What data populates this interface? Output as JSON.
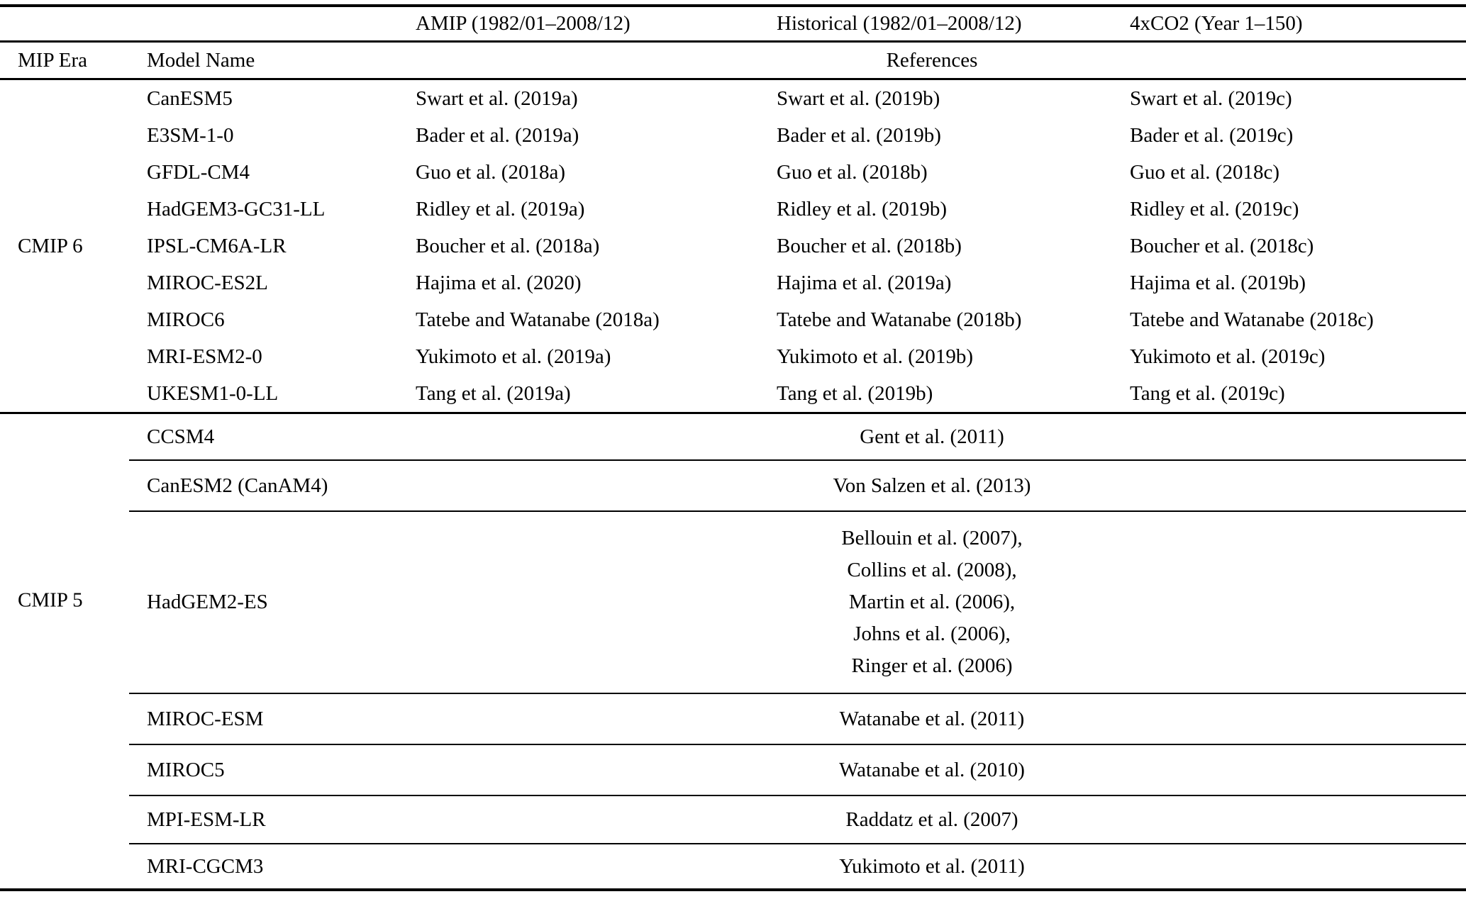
{
  "table": {
    "experiment_headers": {
      "amip": "AMIP (1982/01–2008/12)",
      "historical": "Historical (1982/01–2008/12)",
      "co2_4x": "4xCO2 (Year 1–150)"
    },
    "column_headers": {
      "mip_era": "MIP Era",
      "model_name": "Model Name",
      "references": "References"
    },
    "cmip6": {
      "era_label": "CMIP 6",
      "rows": [
        {
          "model": "CanESM5",
          "amip": "Swart et al. (2019a)",
          "historical": "Swart et al. (2019b)",
          "co2_4x": "Swart et al. (2019c)"
        },
        {
          "model": "E3SM-1-0",
          "amip": "Bader et al. (2019a)",
          "historical": "Bader et al. (2019b)",
          "co2_4x": "Bader et al. (2019c)"
        },
        {
          "model": "GFDL-CM4",
          "amip": "Guo et al. (2018a)",
          "historical": "Guo et al. (2018b)",
          "co2_4x": "Guo et al. (2018c)"
        },
        {
          "model": "HadGEM3-GC31-LL",
          "amip": "Ridley et al. (2019a)",
          "historical": "Ridley et al. (2019b)",
          "co2_4x": "Ridley et al. (2019c)"
        },
        {
          "model": "IPSL-CM6A-LR",
          "amip": "Boucher et al. (2018a)",
          "historical": "Boucher et al. (2018b)",
          "co2_4x": "Boucher et al. (2018c)"
        },
        {
          "model": "MIROC-ES2L",
          "amip": "Hajima et al. (2020)",
          "historical": "Hajima et al. (2019a)",
          "co2_4x": "Hajima et al. (2019b)"
        },
        {
          "model": "MIROC6",
          "amip": "Tatebe and Watanabe (2018a)",
          "historical": "Tatebe and Watanabe (2018b)",
          "co2_4x": "Tatebe and Watanabe (2018c)"
        },
        {
          "model": "MRI-ESM2-0",
          "amip": "Yukimoto et al. (2019a)",
          "historical": "Yukimoto et al. (2019b)",
          "co2_4x": "Yukimoto et al. (2019c)"
        },
        {
          "model": "UKESM1-0-LL",
          "amip": "Tang et al. (2019a)",
          "historical": "Tang et al. (2019b)",
          "co2_4x": "Tang et al. (2019c)"
        }
      ]
    },
    "cmip5": {
      "era_label": "CMIP 5",
      "rows": [
        {
          "model": "CCSM4",
          "reference": "Gent et al. (2011)"
        },
        {
          "model": "CanESM2 (CanAM4)",
          "reference": "Von Salzen et al. (2013)"
        },
        {
          "model": "HadGEM2-ES",
          "reference_lines": [
            "Bellouin et al. (2007),",
            "Collins et al. (2008),",
            "Martin et al. (2006),",
            "Johns et al. (2006),",
            "Ringer et al. (2006)"
          ]
        },
        {
          "model": "MIROC-ESM",
          "reference": "Watanabe et al. (2011)"
        },
        {
          "model": "MIROC5",
          "reference": "Watanabe et al. (2010)"
        },
        {
          "model": "MPI-ESM-LR",
          "reference": "Raddatz et al. (2007)"
        },
        {
          "model": "MRI-CGCM3",
          "reference": "Yukimoto et al. (2011)"
        }
      ]
    }
  }
}
